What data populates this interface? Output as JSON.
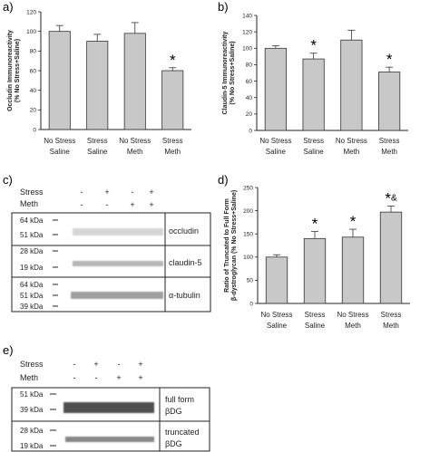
{
  "panels": {
    "a": "a)",
    "b": "b)",
    "c": "c)",
    "d": "d)",
    "e": "e)"
  },
  "chart_data": [
    {
      "type": "bar",
      "panel": "a",
      "ylabel_lines": [
        "Occludin Immunoreactivity",
        "(% No Stress+Saline)"
      ],
      "ylim": [
        0,
        120
      ],
      "yticks": [
        0,
        20,
        40,
        60,
        80,
        100,
        120
      ],
      "categories": [
        [
          "No Stress",
          "Saline"
        ],
        [
          "Stress",
          "Saline"
        ],
        [
          "No Stress",
          "Meth"
        ],
        [
          "Stress",
          "Meth"
        ]
      ],
      "values": [
        100,
        90,
        98,
        60
      ],
      "errors": [
        6,
        7,
        11,
        3
      ],
      "annotations": [
        "",
        "",
        "",
        "*"
      ]
    },
    {
      "type": "bar",
      "panel": "b",
      "ylabel_lines": [
        "Claudin-5 Immunoreactivity",
        "(% No Stress+Saline)"
      ],
      "ylim": [
        0,
        140
      ],
      "yticks": [
        0,
        20,
        40,
        60,
        80,
        100,
        120,
        140
      ],
      "categories": [
        [
          "No Stress",
          "Saline"
        ],
        [
          "Stress",
          "Saline"
        ],
        [
          "No Stress",
          "Meth"
        ],
        [
          "Stress",
          "Meth"
        ]
      ],
      "values": [
        100,
        87,
        110,
        71
      ],
      "errors": [
        3,
        7,
        12,
        6
      ],
      "annotations": [
        "",
        "*",
        "",
        "*"
      ]
    },
    {
      "type": "bar",
      "panel": "d",
      "ylabel_lines": [
        "Ratio of Truncated to Full Form",
        "β-dystroglycan (% No Stress+Saline)"
      ],
      "ylim": [
        0,
        250
      ],
      "yticks": [
        0,
        50,
        100,
        150,
        200,
        250
      ],
      "categories": [
        [
          "No Stress",
          "Saline"
        ],
        [
          "Stress",
          "Saline"
        ],
        [
          "No Stress",
          "Meth"
        ],
        [
          "Stress",
          "Meth"
        ]
      ],
      "values": [
        100,
        140,
        143,
        197
      ],
      "errors": [
        5,
        15,
        17,
        13
      ],
      "annotations": [
        "",
        "*",
        "*",
        "*&"
      ]
    }
  ],
  "blot_c": {
    "stress_label": "Stress",
    "meth_label": "Meth",
    "stress_signs": [
      "-",
      "+",
      "-",
      "+"
    ],
    "meth_signs": [
      "-",
      "-",
      "+",
      "+"
    ],
    "box1": {
      "markers": [
        "64 kDa",
        "51 kDa"
      ],
      "label": "occludin"
    },
    "box2": {
      "markers": [
        "28 kDa",
        "19 kDa"
      ],
      "label": "claudin-5"
    },
    "box3": {
      "markers": [
        "64 kDa",
        "51 kDa",
        "39 kDa"
      ],
      "label": "α-tubulin"
    }
  },
  "blot_e": {
    "stress_label": "Stress",
    "meth_label": "Meth",
    "stress_signs": [
      "-",
      "+",
      "-",
      "+"
    ],
    "meth_signs": [
      "-",
      "-",
      "+",
      "+"
    ],
    "box1": {
      "markers": [
        "51 kDa",
        "39 kDa"
      ],
      "label_lines": [
        "full form",
        "βDG"
      ]
    },
    "box2": {
      "markers": [
        "28 kDa",
        "19 kDa"
      ],
      "label_lines": [
        "truncated",
        "βDG"
      ]
    }
  }
}
